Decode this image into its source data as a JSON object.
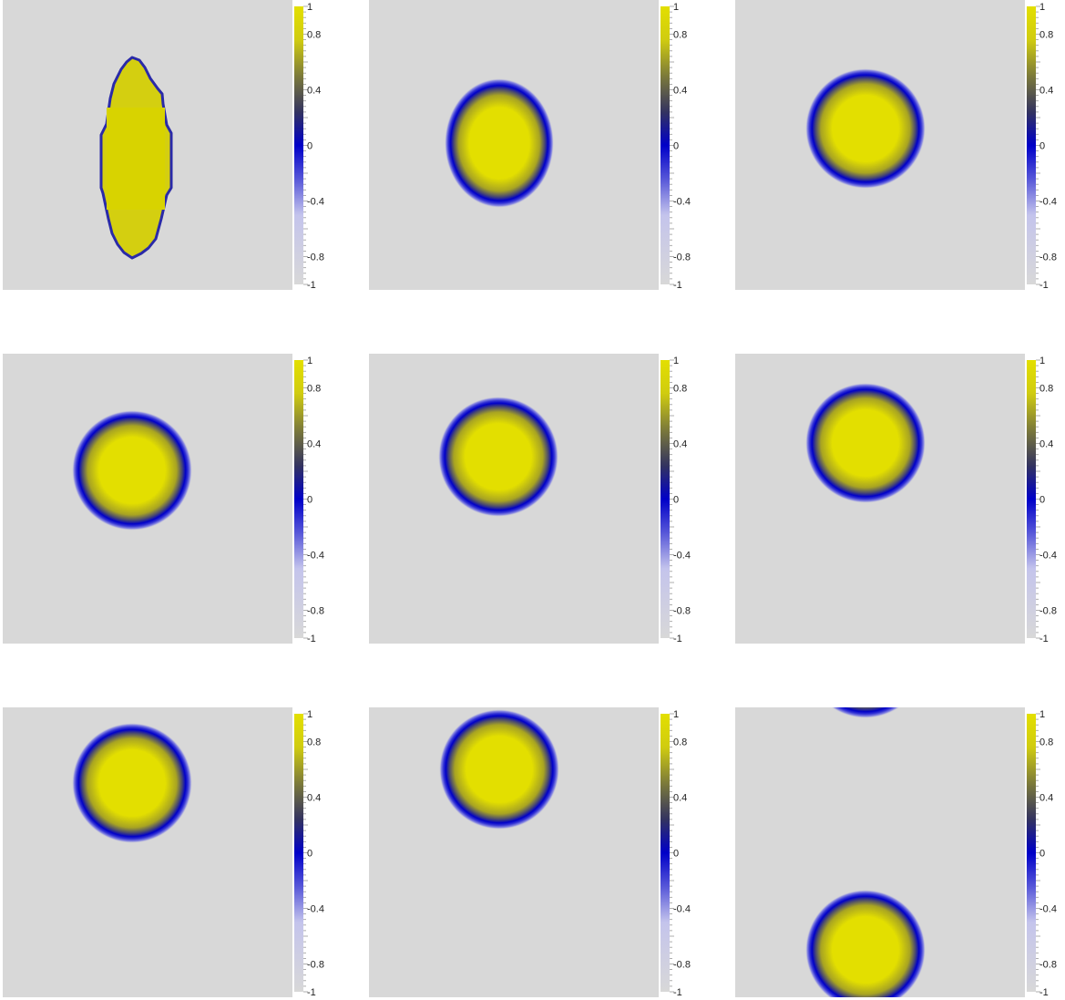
{
  "colorbar": {
    "ticks": [
      "1",
      "0.8",
      "0.4",
      "0",
      "-0.4",
      "-0.8",
      "-1"
    ],
    "colors": {
      "high": "#e3df00",
      "mid": "#0000c8",
      "low": "#d8d8d8",
      "background": "#d8d8d8"
    }
  },
  "panels": [
    {
      "id": "panel-1",
      "shape": "sharp-ellipse"
    },
    {
      "id": "panel-2",
      "shape": "ellipse"
    },
    {
      "id": "panel-3",
      "shape": "circle"
    },
    {
      "id": "panel-4",
      "shape": "circle"
    },
    {
      "id": "panel-5",
      "shape": "circle"
    },
    {
      "id": "panel-6",
      "shape": "circle"
    },
    {
      "id": "panel-7",
      "shape": "circle"
    },
    {
      "id": "panel-8",
      "shape": "circle"
    },
    {
      "id": "panel-9",
      "shape": "circle-wrapped"
    }
  ]
}
